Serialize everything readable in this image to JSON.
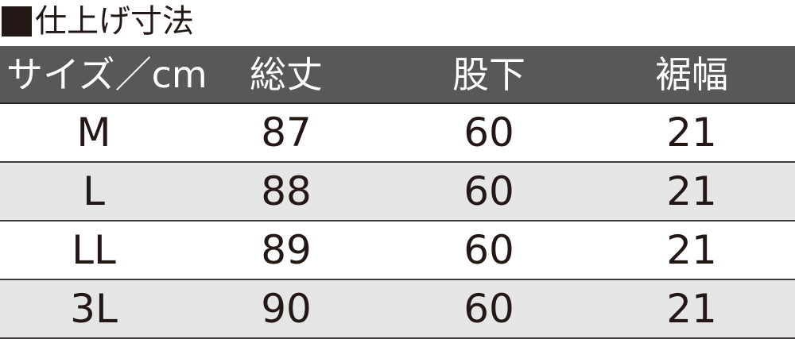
{
  "title": "仕上げ寸法",
  "colors": {
    "header_bg": "#595757",
    "alt_row_bg": "#e6e6e7",
    "text": "#231815"
  },
  "table": {
    "headers": [
      "サイズ／cm",
      "総丈",
      "股下",
      "裾幅"
    ],
    "rows": [
      [
        "M",
        "87",
        "60",
        "21"
      ],
      [
        "L",
        "88",
        "60",
        "21"
      ],
      [
        "LL",
        "89",
        "60",
        "21"
      ],
      [
        "3L",
        "90",
        "60",
        "21"
      ]
    ]
  }
}
